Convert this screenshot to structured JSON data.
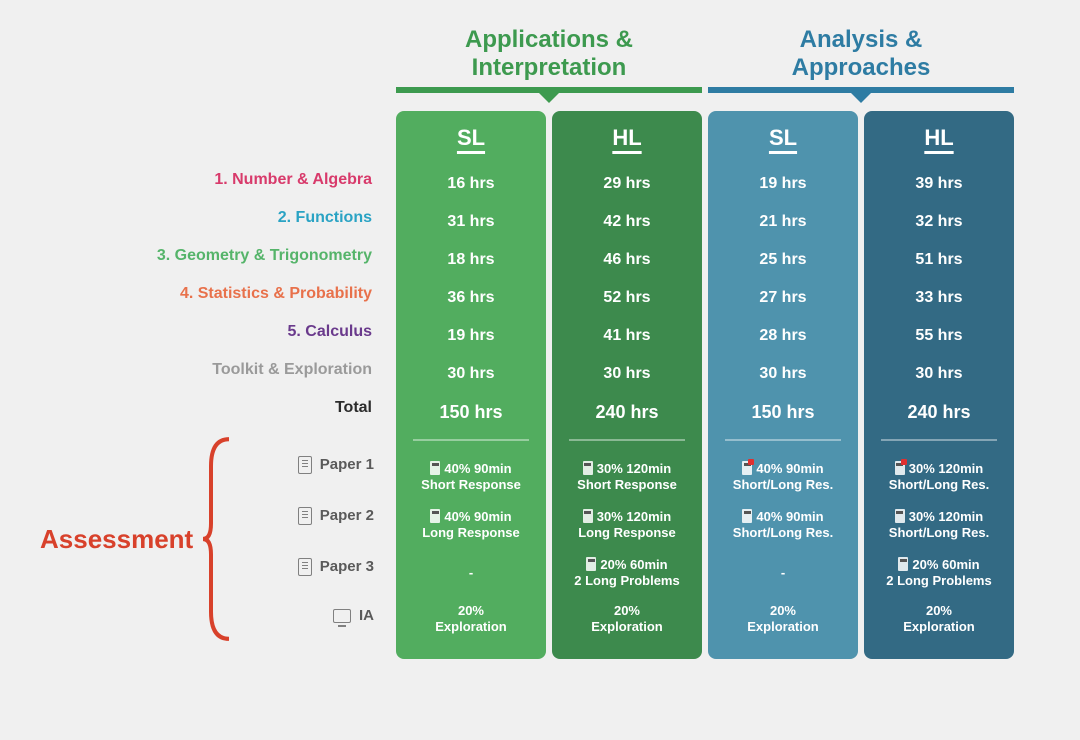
{
  "headers": {
    "left": {
      "title": "Applications & Interpretation",
      "color": "#3d9a4f"
    },
    "right": {
      "title": "Analysis & Approaches",
      "color": "#2e7ca3"
    }
  },
  "columns": [
    {
      "key": "ai_sl",
      "level": "SL",
      "bg": "#52ad5f"
    },
    {
      "key": "ai_hl",
      "level": "HL",
      "bg": "#3d8a4d"
    },
    {
      "key": "aa_sl",
      "level": "SL",
      "bg": "#4f93ad"
    },
    {
      "key": "aa_hl",
      "level": "HL",
      "bg": "#336a84"
    }
  ],
  "topics": [
    {
      "label": "1. Number & Algebra",
      "color": "#d83a6b",
      "hours": [
        "16 hrs",
        "29 hrs",
        "19 hrs",
        "39 hrs"
      ]
    },
    {
      "label": "2. Functions",
      "color": "#2aa3c4",
      "hours": [
        "31 hrs",
        "42 hrs",
        "21 hrs",
        "32 hrs"
      ]
    },
    {
      "label": "3. Geometry & Trigonometry",
      "color": "#55b46a",
      "hours": [
        "18 hrs",
        "46 hrs",
        "25 hrs",
        "51 hrs"
      ]
    },
    {
      "label": "4. Statistics & Probability",
      "color": "#e8714b",
      "hours": [
        "36 hrs",
        "52 hrs",
        "27 hrs",
        "33 hrs"
      ]
    },
    {
      "label": "5. Calculus",
      "color": "#6a3a8c",
      "hours": [
        "19 hrs",
        "41 hrs",
        "28 hrs",
        "55 hrs"
      ]
    },
    {
      "label": "Toolkit & Exploration",
      "color": "#9a9a9a",
      "hours": [
        "30 hrs",
        "30 hrs",
        "30 hrs",
        "30 hrs"
      ]
    }
  ],
  "total": {
    "label": "Total",
    "color": "#2b2b2b",
    "hours": [
      "150 hrs",
      "240 hrs",
      "150 hrs",
      "240 hrs"
    ]
  },
  "assessment": {
    "label": "Assessment",
    "label_color": "#d8412b",
    "rows": [
      {
        "key": "p1",
        "label": "Paper 1",
        "icon": "doc"
      },
      {
        "key": "p2",
        "label": "Paper 2",
        "icon": "doc"
      },
      {
        "key": "p3",
        "label": "Paper 3",
        "icon": "doc"
      },
      {
        "key": "ia",
        "label": "IA",
        "icon": "monitor"
      }
    ],
    "cells": {
      "ai_sl": {
        "p1": {
          "line1": "40% 90min",
          "line2": "Short Response",
          "calc": "plain"
        },
        "p2": {
          "line1": "40% 90min",
          "line2": "Long Response",
          "calc": "plain"
        },
        "p3": {
          "line1": "-",
          "line2": ""
        },
        "ia": {
          "line1": "20%",
          "line2": "Exploration"
        }
      },
      "ai_hl": {
        "p1": {
          "line1": "30% 120min",
          "line2": "Short Response",
          "calc": "plain"
        },
        "p2": {
          "line1": "30% 120min",
          "line2": "Long Response",
          "calc": "plain"
        },
        "p3": {
          "line1": "20% 60min",
          "line2": "2 Long Problems",
          "calc": "plain"
        },
        "ia": {
          "line1": "20%",
          "line2": "Exploration"
        }
      },
      "aa_sl": {
        "p1": {
          "line1": "40% 90min",
          "line2": "Short/Long Res.",
          "calc": "nocalc"
        },
        "p2": {
          "line1": "40% 90min",
          "line2": "Short/Long Res.",
          "calc": "plain"
        },
        "p3": {
          "line1": "-",
          "line2": ""
        },
        "ia": {
          "line1": "20%",
          "line2": "Exploration"
        }
      },
      "aa_hl": {
        "p1": {
          "line1": "30% 120min",
          "line2": "Short/Long Res.",
          "calc": "nocalc"
        },
        "p2": {
          "line1": "30% 120min",
          "line2": "Short/Long Res.",
          "calc": "plain"
        },
        "p3": {
          "line1": "20% 60min",
          "line2": "2 Long Problems",
          "calc": "plain"
        },
        "ia": {
          "line1": "20%",
          "line2": "Exploration"
        }
      }
    }
  }
}
